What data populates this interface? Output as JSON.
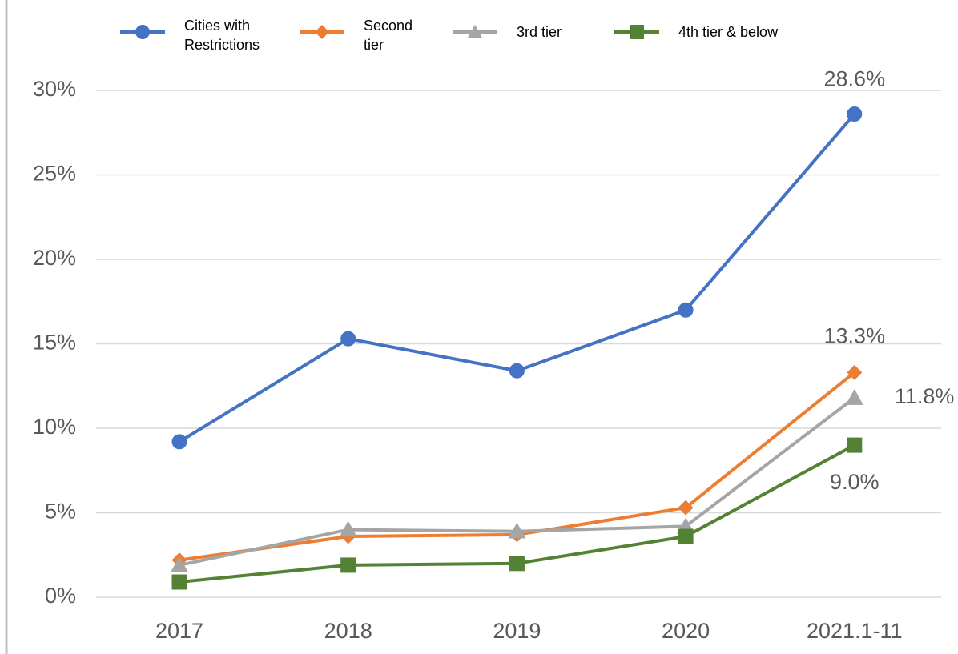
{
  "chart_data": {
    "type": "line",
    "categories": [
      "2017",
      "2018",
      "2019",
      "2020",
      "2021.1-11"
    ],
    "series": [
      {
        "name": "Cities with Restrictions",
        "color": "#4472c4",
        "marker": "circle",
        "values": [
          9.2,
          15.3,
          13.4,
          17.0,
          28.6
        ],
        "value_labels": [
          null,
          null,
          null,
          null,
          "28.6%"
        ]
      },
      {
        "name": "Second tier",
        "color": "#ed7d31",
        "marker": "diamond",
        "values": [
          2.2,
          3.6,
          3.7,
          5.3,
          13.3
        ],
        "value_labels": [
          null,
          null,
          null,
          null,
          "13.3%"
        ]
      },
      {
        "name": "3rd tier",
        "color": "#a5a5a5",
        "marker": "triangle",
        "values": [
          1.9,
          4.0,
          3.9,
          4.2,
          11.8
        ],
        "value_labels": [
          null,
          null,
          null,
          null,
          "11.8%"
        ]
      },
      {
        "name": "4th tier & below",
        "color": "#548235",
        "marker": "square",
        "values": [
          0.9,
          1.9,
          2.0,
          3.6,
          9.0
        ],
        "value_labels": [
          null,
          null,
          null,
          null,
          "9.0%"
        ]
      }
    ],
    "ylim": [
      0,
      30
    ],
    "yticks": [
      {
        "value": 0,
        "label": "0%"
      },
      {
        "value": 5,
        "label": "5%"
      },
      {
        "value": 10,
        "label": "10%"
      },
      {
        "value": 15,
        "label": "15%"
      },
      {
        "value": 20,
        "label": "20%"
      },
      {
        "value": 25,
        "label": "25%"
      },
      {
        "value": 30,
        "label": "30%"
      }
    ],
    "grid": true
  }
}
